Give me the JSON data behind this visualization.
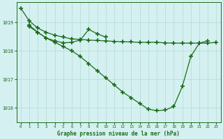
{
  "title": "Graphe pression niveau de la mer (hPa)",
  "bg_color": "#d4f0f0",
  "line_color": "#1a6b1a",
  "grid_color": "#b8ddd8",
  "xlim": [
    -0.5,
    23.5
  ],
  "ylim": [
    1015.5,
    1019.7
  ],
  "yticks": [
    1016,
    1017,
    1018,
    1019
  ],
  "xticks": [
    0,
    1,
    2,
    3,
    4,
    5,
    6,
    7,
    8,
    9,
    10,
    11,
    12,
    13,
    14,
    15,
    16,
    17,
    18,
    19,
    20,
    21,
    22,
    23
  ],
  "series1": {
    "x": [
      0,
      1,
      2,
      3,
      4,
      5,
      6,
      7,
      8,
      9,
      10,
      11,
      12,
      13,
      14,
      15,
      16,
      17,
      18,
      19,
      20,
      21,
      22,
      23
    ],
    "y": [
      1019.5,
      1019.05,
      1018.8,
      1018.65,
      1018.55,
      1018.48,
      1018.42,
      1018.4,
      1018.38,
      1018.36,
      1018.35,
      1018.33,
      1018.32,
      1018.31,
      1018.3,
      1018.3,
      1018.3,
      1018.28,
      1018.27,
      1018.27,
      1018.27,
      1018.27,
      1018.27,
      1018.3
    ]
  },
  "series2": {
    "x": [
      1,
      2,
      3,
      4,
      5,
      6,
      7,
      8,
      9,
      10
    ],
    "y": [
      1018.85,
      1018.65,
      1018.45,
      1018.35,
      1018.28,
      1018.3,
      1018.38,
      1018.75,
      1018.6,
      1018.48
    ]
  },
  "series3": {
    "x": [
      1,
      2,
      3,
      4,
      5,
      6,
      7,
      8,
      9,
      10,
      11,
      12,
      13,
      14,
      15,
      16,
      17,
      18,
      19,
      20,
      21,
      22
    ],
    "y": [
      1018.9,
      1018.65,
      1018.45,
      1018.3,
      1018.15,
      1018.0,
      1017.8,
      1017.55,
      1017.3,
      1017.05,
      1016.8,
      1016.55,
      1016.35,
      1016.15,
      1015.95,
      1015.9,
      1015.92,
      1016.05,
      1016.75,
      1017.8,
      1018.27,
      1018.35
    ]
  }
}
